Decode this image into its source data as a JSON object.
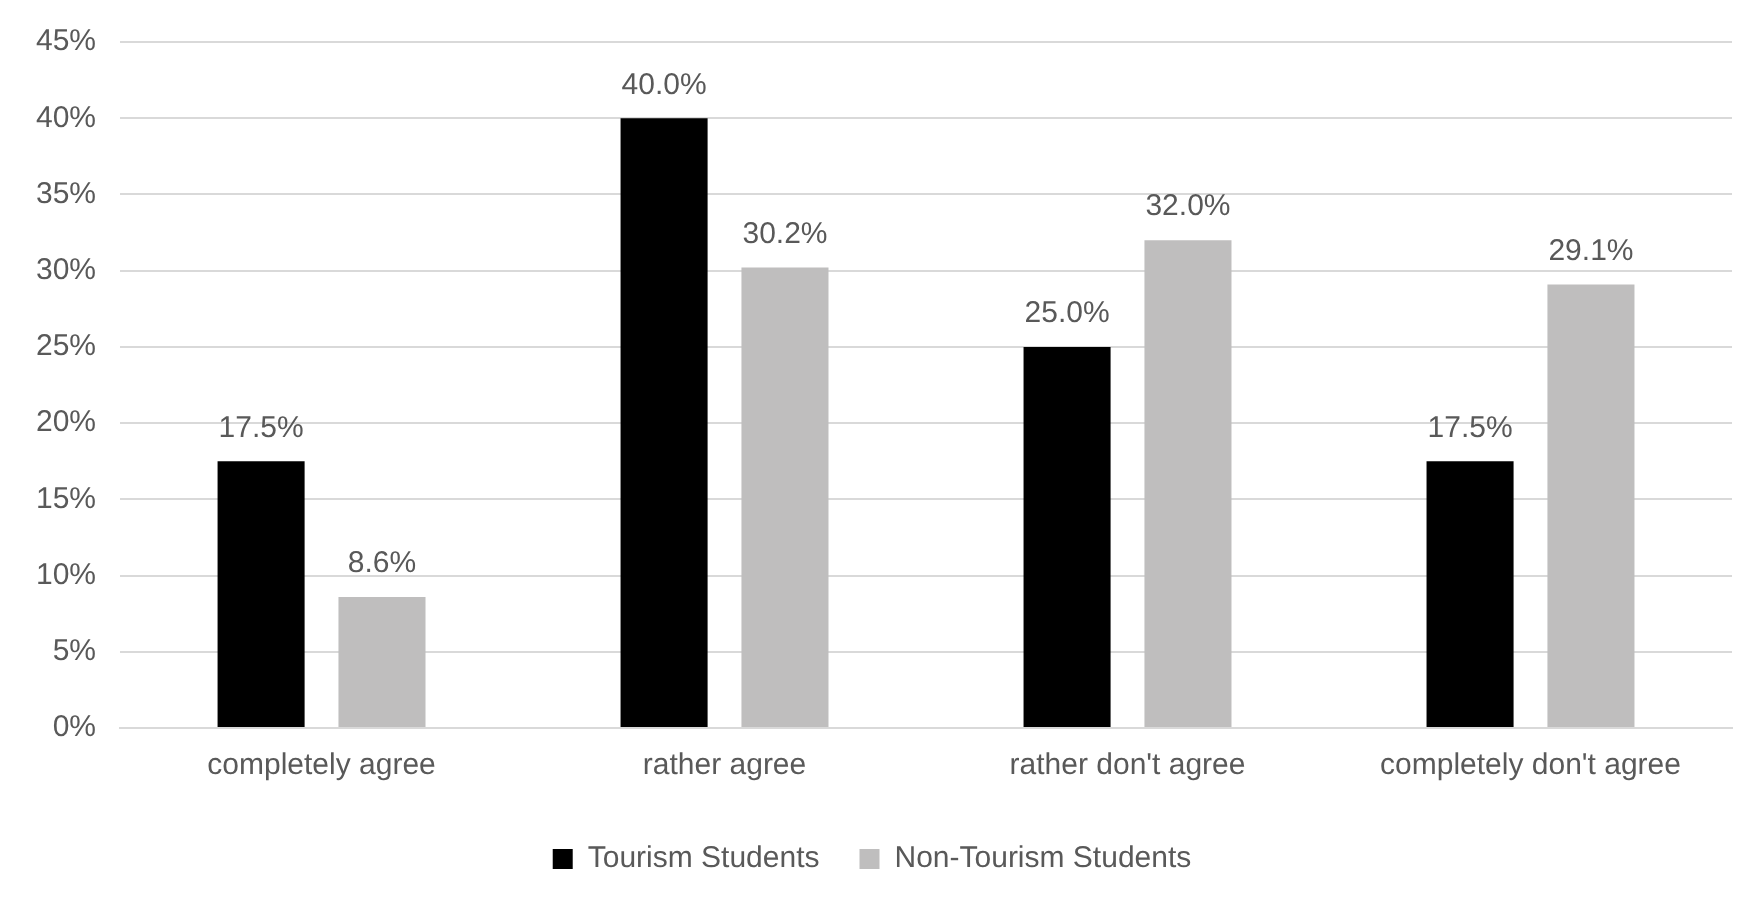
{
  "chart_data": {
    "type": "bar",
    "categories": [
      "completely agree",
      "rather agree",
      "rather don't agree",
      "completely don't agree"
    ],
    "series": [
      {
        "name": "Tourism Students",
        "color": "#000000",
        "values": [
          17.5,
          40.0,
          25.0,
          17.5
        ],
        "value_labels": [
          "17.5%",
          "40.0%",
          "25.0%",
          "17.5%"
        ]
      },
      {
        "name": "Non-Tourism Students",
        "color": "#bfbebe",
        "values": [
          8.6,
          30.2,
          32.0,
          29.1
        ],
        "value_labels": [
          "8.6%",
          "30.2%",
          "32.0%",
          "29.1%"
        ]
      }
    ],
    "ylim": [
      0,
      45
    ],
    "yticks": [
      {
        "value": 0,
        "label": "0%"
      },
      {
        "value": 5,
        "label": "5%"
      },
      {
        "value": 10,
        "label": "10%"
      },
      {
        "value": 15,
        "label": "15%"
      },
      {
        "value": 20,
        "label": "20%"
      },
      {
        "value": 25,
        "label": "25%"
      },
      {
        "value": 30,
        "label": "30%"
      },
      {
        "value": 35,
        "label": "35%"
      },
      {
        "value": 40,
        "label": "40%"
      },
      {
        "value": 45,
        "label": "45%"
      }
    ],
    "grid": "y",
    "legend": "bottom"
  }
}
